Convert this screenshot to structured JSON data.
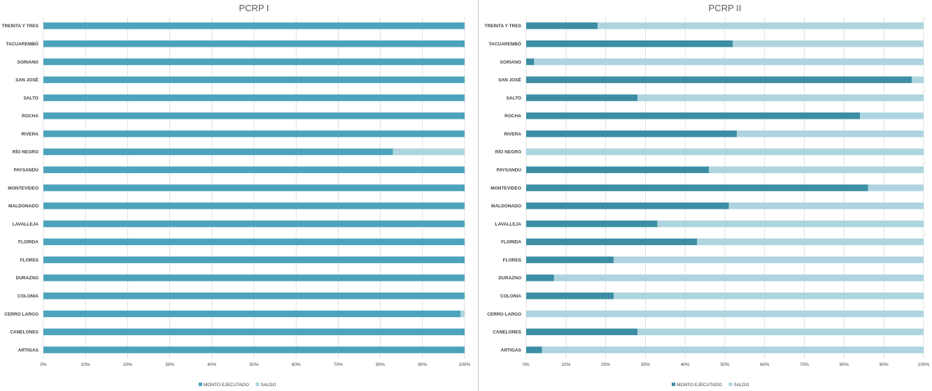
{
  "chart_data": [
    {
      "type": "bar",
      "orientation": "horizontal",
      "stacked": "percent",
      "title": "PCRP I",
      "categories": [
        "TREINTA Y TRES",
        "TACUAREMBÓ",
        "SORIANO",
        "SAN JOSÉ",
        "SALTO",
        "ROCHA",
        "RIVERA",
        "RÍO NEGRO",
        "PAYSANDÚ",
        "MONTEVIDEO",
        "MALDONADO",
        "LAVALLEJA",
        "FLORIDA",
        "FLORES",
        "DURAZNO",
        "COLONIA",
        "CERRO LARGO",
        "CANELONES",
        "ARTIGAS"
      ],
      "series": [
        {
          "name": "MONTO EJECUTADO",
          "color": "#4da3bb",
          "values": [
            100,
            100,
            100,
            100,
            100,
            100,
            100,
            83,
            100,
            100,
            100,
            100,
            100,
            100,
            100,
            100,
            99,
            100,
            100
          ]
        },
        {
          "name": "SALDO",
          "color": "#add4df",
          "values": [
            0,
            0,
            0,
            0,
            0,
            0,
            0,
            17,
            0,
            0,
            0,
            0,
            0,
            0,
            0,
            0,
            1,
            0,
            0
          ]
        }
      ],
      "x_ticks": [
        "0%",
        "10%",
        "20%",
        "30%",
        "40%",
        "50%",
        "60%",
        "70%",
        "80%",
        "90%",
        "100%"
      ],
      "xlim": [
        0,
        100
      ],
      "grid": true,
      "legend": "bottom"
    },
    {
      "type": "bar",
      "orientation": "horizontal",
      "stacked": "percent",
      "title": "PCRP II",
      "categories": [
        "TREINTA Y TRES",
        "TACUAREMBÓ",
        "SORIANO",
        "SAN JOSÉ",
        "SALTO",
        "ROCHA",
        "RIVERA",
        "RÍO NEGRO",
        "PAYSANDÚ",
        "MONTEVIDEO",
        "MALDONADO",
        "LAVALLEJA",
        "FLORIDA",
        "FLORES",
        "DURAZNO",
        "COLONIA",
        "CERRO LARGO",
        "CANELONES",
        "ARTIGAS"
      ],
      "series": [
        {
          "name": "MONTO EJECUTADO",
          "color": "#3d8ea4",
          "values": [
            18,
            52,
            2,
            97,
            28,
            84,
            53,
            0,
            46,
            86,
            51,
            33,
            43,
            22,
            7,
            22,
            0,
            28,
            4
          ]
        },
        {
          "name": "SALDO",
          "color": "#add4df",
          "values": [
            82,
            48,
            98,
            3,
            72,
            16,
            47,
            100,
            54,
            14,
            49,
            67,
            57,
            78,
            93,
            78,
            100,
            72,
            96
          ]
        }
      ],
      "x_ticks": [
        "0%",
        "10%",
        "20%",
        "30%",
        "40%",
        "50%",
        "60%",
        "70%",
        "80%",
        "90%",
        "100%"
      ],
      "xlim": [
        0,
        100
      ],
      "grid": true,
      "legend": "bottom"
    }
  ]
}
